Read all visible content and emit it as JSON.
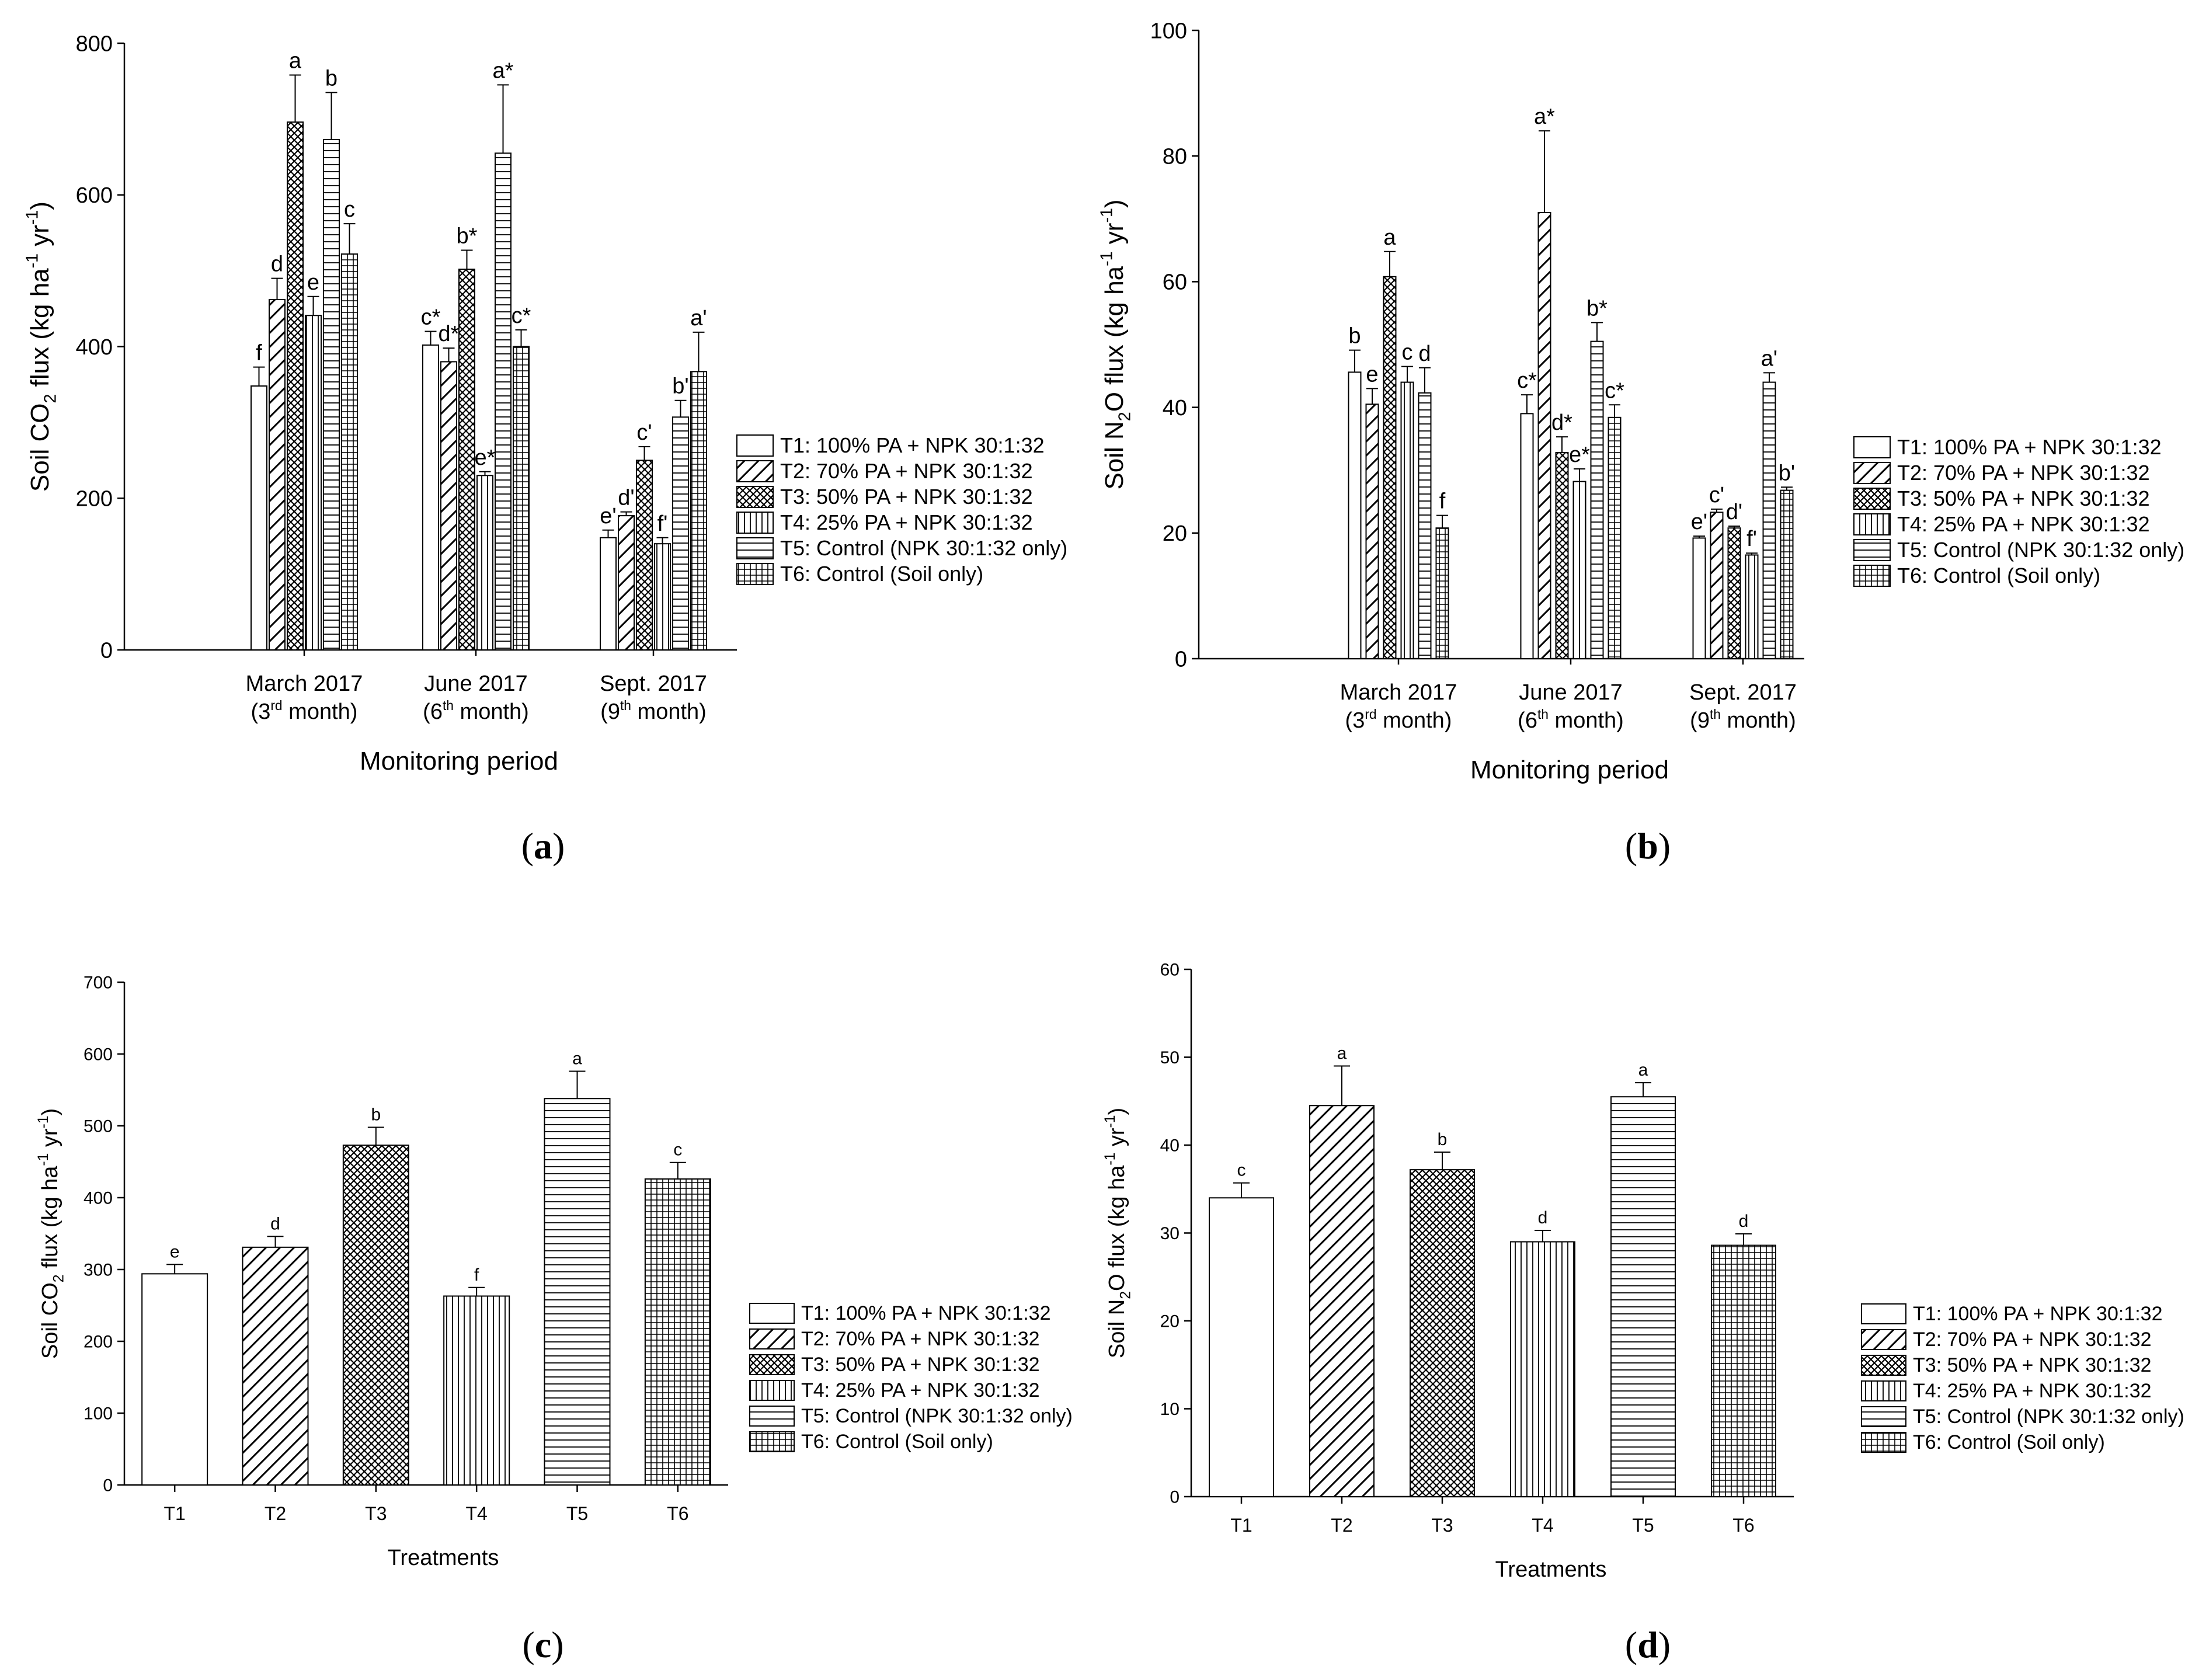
{
  "legend_entries": [
    "T1: 100% PA + NPK 30:1:32",
    "T2: 70% PA + NPK 30:1:32",
    "T3: 50% PA + NPK 30:1:32",
    "T4: 25% PA + NPK 30:1:32",
    "T5: Control (NPK 30:1:32 only)",
    "T6: Control (Soil only)"
  ],
  "colors": {
    "bar_fill": "#ffffff",
    "stroke": "#000000",
    "background": "#ffffff"
  },
  "chart_data": [
    {
      "id": "a",
      "type": "bar",
      "caption": "(a)",
      "ylabel": "Soil CO2 flux (kg ha-1 yr-1)",
      "ylabel_parts": [
        "Soil CO",
        "2",
        " flux (kg ha",
        "-1",
        " yr",
        "-1",
        ")"
      ],
      "xlabel": "Monitoring period",
      "ylim": [
        0,
        800
      ],
      "yticks": [
        0,
        200,
        400,
        600,
        800
      ],
      "categories": [
        {
          "line1": "March 2017",
          "line2_pre": "(3",
          "line2_sup": "rd",
          "line2_post": " month)"
        },
        {
          "line1": "June 2017",
          "line2_pre": "(6",
          "line2_sup": "th",
          "line2_post": " month)"
        },
        {
          "line1": "Sept. 2017",
          "line2_pre": "(9",
          "line2_sup": "th",
          "line2_post": " month)"
        }
      ],
      "series": [
        {
          "name": "T1",
          "values": [
            348,
            402,
            148
          ],
          "errors": [
            25,
            18,
            10
          ],
          "letters": [
            "f",
            "c*",
            "e'"
          ]
        },
        {
          "name": "T2",
          "values": [
            462,
            380,
            177
          ],
          "errors": [
            28,
            18,
            5
          ],
          "letters": [
            "d",
            "d*",
            "d'"
          ]
        },
        {
          "name": "T3",
          "values": [
            696,
            502,
            250
          ],
          "errors": [
            62,
            25,
            18
          ],
          "letters": [
            "a",
            "b*",
            "c'"
          ]
        },
        {
          "name": "T4",
          "values": [
            441,
            230,
            140
          ],
          "errors": [
            25,
            5,
            8
          ],
          "letters": [
            "e",
            "e*",
            "f'"
          ]
        },
        {
          "name": "T5",
          "values": [
            673,
            655,
            307
          ],
          "errors": [
            62,
            90,
            22
          ],
          "letters": [
            "b",
            "a*",
            "b'"
          ]
        },
        {
          "name": "T6",
          "values": [
            522,
            400,
            367
          ],
          "errors": [
            40,
            22,
            52
          ],
          "letters": [
            "c",
            "c*",
            "a'"
          ]
        }
      ]
    },
    {
      "id": "b",
      "type": "bar",
      "caption": "(b)",
      "ylabel": "Soil N2O flux (kg ha-1 yr-1)",
      "ylabel_parts": [
        "Soil N",
        "2",
        "O flux (kg ha",
        "-1",
        " yr",
        "-1",
        ")"
      ],
      "xlabel": "Monitoring period",
      "ylim": [
        0,
        100
      ],
      "yticks": [
        0,
        20,
        40,
        60,
        80,
        100
      ],
      "categories": [
        {
          "line1": "March 2017",
          "line2_pre": "(3",
          "line2_sup": "rd",
          "line2_post": " month)"
        },
        {
          "line1": "June 2017",
          "line2_pre": "(6",
          "line2_sup": "th",
          "line2_post": " month)"
        },
        {
          "line1": "Sept. 2017",
          "line2_pre": "(9",
          "line2_sup": "th",
          "line2_post": " month)"
        }
      ],
      "series": [
        {
          "name": "T1",
          "values": [
            45.6,
            39.0,
            19.2
          ],
          "errors": [
            3.5,
            3.0,
            0.3
          ],
          "letters": [
            "b",
            "c*",
            "e'"
          ]
        },
        {
          "name": "T2",
          "values": [
            40.5,
            71.0,
            23.3
          ],
          "errors": [
            2.5,
            13.0,
            0.5
          ],
          "letters": [
            "e",
            "a*",
            "c'"
          ]
        },
        {
          "name": "T3",
          "values": [
            60.8,
            32.8,
            20.8
          ],
          "errors": [
            4.0,
            2.5,
            0.3
          ],
          "letters": [
            "a",
            "d*",
            "d'"
          ]
        },
        {
          "name": "T4",
          "values": [
            44.0,
            28.2,
            16.5
          ],
          "errors": [
            2.5,
            2.0,
            0.3
          ],
          "letters": [
            "c",
            "e*",
            "f'"
          ]
        },
        {
          "name": "T5",
          "values": [
            42.3,
            50.5,
            44.0
          ],
          "errors": [
            4.0,
            3.0,
            1.5
          ],
          "letters": [
            "d",
            "b*",
            "a'"
          ]
        },
        {
          "name": "T6",
          "values": [
            20.8,
            38.4,
            26.8
          ],
          "errors": [
            2.0,
            2.0,
            0.5
          ],
          "letters": [
            "f",
            "c*",
            "b'"
          ]
        }
      ]
    },
    {
      "id": "c",
      "type": "bar",
      "caption": "(c)",
      "ylabel": "Soil CO2 flux (kg ha-1 yr-1)",
      "ylabel_parts": [
        "Soil CO",
        "2",
        " flux (kg ha",
        "-1",
        " yr",
        "-1",
        ")"
      ],
      "xlabel": "Treatments",
      "ylim": [
        0,
        700
      ],
      "yticks": [
        0,
        100,
        200,
        300,
        400,
        500,
        600,
        700
      ],
      "categories": [
        "T1",
        "T2",
        "T3",
        "T4",
        "T5",
        "T6"
      ],
      "values": [
        294,
        331,
        473,
        263,
        538,
        426
      ],
      "errors": [
        13,
        15,
        25,
        12,
        38,
        23
      ],
      "letters": [
        "e",
        "d",
        "b",
        "f",
        "a",
        "c"
      ]
    },
    {
      "id": "d",
      "type": "bar",
      "caption": "(d)",
      "ylabel": "Soil N2O flux (kg ha-1 yr-1)",
      "ylabel_parts": [
        "Soil N",
        "2",
        "O flux (kg ha",
        "-1",
        " yr",
        "-1",
        ")"
      ],
      "xlabel": "Treatments",
      "ylim": [
        0,
        60
      ],
      "yticks": [
        0,
        10,
        20,
        30,
        40,
        50,
        60
      ],
      "categories": [
        "T1",
        "T2",
        "T3",
        "T4",
        "T5",
        "T6"
      ],
      "values": [
        34.0,
        44.5,
        37.2,
        29.0,
        45.5,
        28.6
      ],
      "errors": [
        1.7,
        4.5,
        2.0,
        1.3,
        1.6,
        1.3
      ],
      "letters": [
        "c",
        "a",
        "b",
        "d",
        "a",
        "d"
      ]
    }
  ]
}
